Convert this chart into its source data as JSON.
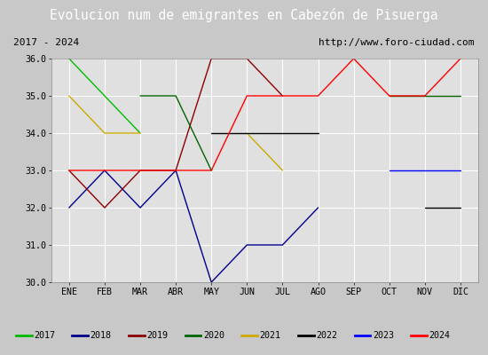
{
  "title": "Evolucion num de emigrantes en Cabezón de Pisuerga",
  "subtitle_left": "2017 - 2024",
  "subtitle_right": "http://www.foro-ciudad.com",
  "ylim": [
    30.0,
    36.0
  ],
  "yticks": [
    30.0,
    31.0,
    32.0,
    33.0,
    34.0,
    35.0,
    36.0
  ],
  "months": [
    "ENE",
    "FEB",
    "MAR",
    "ABR",
    "MAY",
    "JUN",
    "JUL",
    "AGO",
    "SEP",
    "OCT",
    "NOV",
    "DIC"
  ],
  "series": {
    "2017": {
      "color": "#00bb00",
      "data": [
        36,
        35,
        34,
        null,
        null,
        null,
        null,
        null,
        null,
        null,
        null,
        null
      ]
    },
    "2018": {
      "color": "#00008b",
      "data": [
        32,
        33,
        32,
        33,
        30,
        31,
        31,
        32,
        null,
        null,
        null,
        null
      ]
    },
    "2019": {
      "color": "#8b0000",
      "data": [
        33,
        32,
        33,
        33,
        36,
        36,
        35,
        null,
        null,
        null,
        null,
        null
      ]
    },
    "2020": {
      "color": "#006400",
      "data": [
        null,
        null,
        35,
        35,
        33,
        null,
        null,
        null,
        null,
        35,
        35,
        35
      ]
    },
    "2021": {
      "color": "#ccaa00",
      "data": [
        35,
        34,
        34,
        null,
        null,
        34,
        33,
        null,
        null,
        null,
        null,
        null
      ]
    },
    "2022": {
      "color": "#000000",
      "data": [
        null,
        null,
        null,
        null,
        34,
        34,
        34,
        34,
        null,
        null,
        32,
        32
      ]
    },
    "2023": {
      "color": "#0000ff",
      "data": [
        null,
        null,
        null,
        null,
        null,
        null,
        null,
        null,
        null,
        33,
        33,
        33
      ]
    },
    "2024": {
      "color": "#ff0000",
      "data": [
        33,
        33,
        33,
        33,
        33,
        35,
        35,
        35,
        36,
        35,
        35,
        36
      ]
    }
  },
  "title_bg": "#4472c4",
  "title_color": "#ffffff",
  "plot_bg": "#e0e0e0",
  "grid_color": "#ffffff",
  "legend_border_color": "#0000bb",
  "outer_bg": "#c8c8c8"
}
